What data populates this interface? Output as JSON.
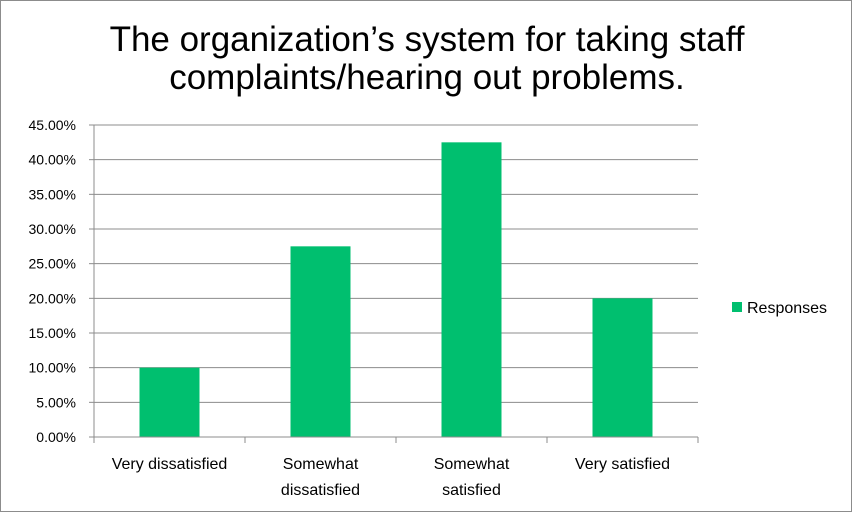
{
  "chart_data": {
    "type": "bar",
    "title_lines": [
      "The organization’s  system for taking staff",
      "complaints/hearing  out problems."
    ],
    "categories": [
      [
        "Very dissatisfied"
      ],
      [
        "Somewhat",
        "dissatisfied"
      ],
      [
        "Somewhat",
        "satisfied"
      ],
      [
        "Very satisfied"
      ]
    ],
    "series": [
      {
        "name": "Responses",
        "values": [
          0.1,
          0.275,
          0.425,
          0.2
        ]
      }
    ],
    "y_ticks": [
      0,
      0.05,
      0.1,
      0.15,
      0.2,
      0.25,
      0.3,
      0.35,
      0.4,
      0.45
    ],
    "ylim": [
      0,
      0.45
    ],
    "y_tick_format": "percent-2dp",
    "grid": true,
    "legend_position": "right",
    "colors": {
      "bar": "#00BF6F",
      "grid": "#8c8c8c",
      "axis": "#8c8c8c",
      "border": "#8c8c8c"
    }
  }
}
